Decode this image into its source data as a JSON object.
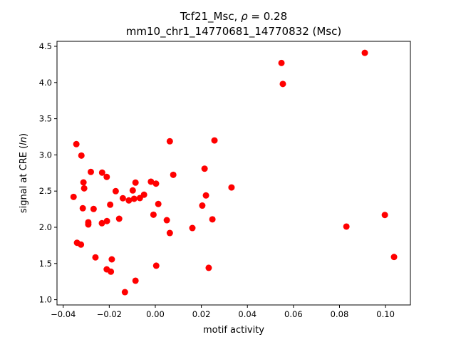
{
  "chart_data": {
    "type": "scatter",
    "title_line1_prefix": "Tcf21_Msc, ",
    "title_rho_symbol": "ρ",
    "title_rho_value": " = 0.28",
    "title_line2": "mm10_chr1_14770681_14770832 (Msc)",
    "xlabel": "motif activity",
    "ylabel_prefix": "signal at CRE (",
    "ylabel_italic": "ln",
    "ylabel_suffix": ")",
    "xlim": [
      -0.0427,
      0.1108
    ],
    "ylim": [
      0.927,
      4.569
    ],
    "xticks": [
      -0.04,
      -0.02,
      0.0,
      0.02,
      0.04,
      0.06,
      0.08,
      0.1
    ],
    "xtick_labels": [
      "−0.04",
      "−0.02",
      "0.00",
      "0.02",
      "0.04",
      "0.06",
      "0.08",
      "0.10"
    ],
    "yticks": [
      1.0,
      1.5,
      2.0,
      2.5,
      3.0,
      3.5,
      4.0,
      4.5
    ],
    "ytick_labels": [
      "1.0",
      "1.5",
      "2.0",
      "2.5",
      "3.0",
      "3.5",
      "4.0",
      "4.5"
    ],
    "grid": false,
    "marker_color": "#ff0000",
    "points": [
      [
        -0.0343,
        3.149
      ],
      [
        -0.0321,
        2.991
      ],
      [
        0.0063,
        3.188
      ],
      [
        -0.028,
        2.765
      ],
      [
        -0.0231,
        2.755
      ],
      [
        -0.0211,
        2.696
      ],
      [
        0.0078,
        2.725
      ],
      [
        -0.0312,
        2.62
      ],
      [
        -0.0309,
        2.538
      ],
      [
        -0.0086,
        2.617
      ],
      [
        -0.0019,
        2.63
      ],
      [
        0.0003,
        2.603
      ],
      [
        -0.0355,
        2.42
      ],
      [
        -0.0172,
        2.499
      ],
      [
        -0.0098,
        2.509
      ],
      [
        -0.0141,
        2.401
      ],
      [
        -0.0115,
        2.371
      ],
      [
        -0.0092,
        2.394
      ],
      [
        -0.0067,
        2.404
      ],
      [
        -0.0049,
        2.45
      ],
      [
        0.0013,
        2.322
      ],
      [
        -0.0315,
        2.263
      ],
      [
        -0.0268,
        2.253
      ],
      [
        -0.0196,
        2.312
      ],
      [
        -0.0008,
        2.174
      ],
      [
        0.005,
        2.098
      ],
      [
        0.0063,
        1.921
      ],
      [
        -0.0291,
        2.069
      ],
      [
        -0.0291,
        2.039
      ],
      [
        -0.0232,
        2.056
      ],
      [
        -0.021,
        2.086
      ],
      [
        -0.0157,
        2.118
      ],
      [
        -0.034,
        1.786
      ],
      [
        -0.0323,
        1.761
      ],
      [
        -0.026,
        1.584
      ],
      [
        -0.0189,
        1.557
      ],
      [
        -0.0211,
        1.419
      ],
      [
        -0.0193,
        1.387
      ],
      [
        0.0004,
        1.469
      ],
      [
        -0.0086,
        1.262
      ],
      [
        -0.0132,
        1.104
      ],
      [
        0.0257,
        3.2
      ],
      [
        0.0214,
        2.81
      ],
      [
        0.022,
        2.44
      ],
      [
        0.0204,
        2.3
      ],
      [
        0.0248,
        2.11
      ],
      [
        0.0161,
        1.99
      ],
      [
        0.0232,
        1.44
      ],
      [
        0.0331,
        2.55
      ],
      [
        0.0548,
        4.27
      ],
      [
        0.0554,
        3.98
      ],
      [
        0.091,
        4.41
      ],
      [
        0.0997,
        2.17
      ],
      [
        0.083,
        2.01
      ],
      [
        0.1037,
        1.59
      ]
    ]
  }
}
